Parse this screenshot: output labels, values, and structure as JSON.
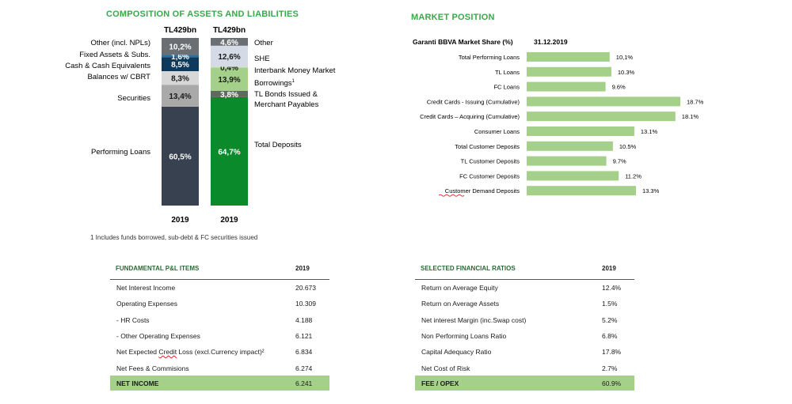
{
  "left_title": "COMPOSITION OF ASSETS AND LIABILITIES",
  "right_title": "MARKET POSITION",
  "footnote": "1 Includes funds borrowed, sub-debt & FC securities issued",
  "colors": {
    "title_green": "#3aa84a",
    "bar_green": "#a5d08a",
    "loan_dark": "#37414f",
    "deposit_green": "#0b8a2c"
  },
  "chart_data": [
    {
      "type": "bar",
      "stacked": true,
      "categories": [
        "2019",
        "2019"
      ],
      "totals": [
        "TL429bn",
        "TL429bn"
      ],
      "series": [
        {
          "stack": "assets",
          "name": "Performing Loans",
          "value": 60.5,
          "label": "60,5%",
          "color": "#37414f"
        },
        {
          "stack": "assets",
          "name": "Securities",
          "value": 13.4,
          "label": "13,4%",
          "color": "#a9a9a9"
        },
        {
          "stack": "assets",
          "name": "Balances w/ CBRT",
          "value": 8.3,
          "label": "8,3%",
          "color": "#d7d7d7"
        },
        {
          "stack": "assets",
          "name": "Cash & Cash Equivalents",
          "value": 8.5,
          "label": "8,5%",
          "color": "#0d3a5c"
        },
        {
          "stack": "assets",
          "name": "Fixed Assets & Subs.",
          "value": 1.6,
          "label": "1,6%",
          "color": "#2f6f9a"
        },
        {
          "stack": "assets",
          "name": "Other (incl. NPLs)",
          "value": 10.2,
          "label": "10,2%",
          "color": "#6b6f73"
        },
        {
          "stack": "liabilities",
          "name": "Total Deposits",
          "value": 64.7,
          "label": "64,7%",
          "color": "#0b8a2c"
        },
        {
          "stack": "liabilities",
          "name": "TL Bonds Issued & Merchant Payables",
          "value": 3.8,
          "label": "3,8%",
          "color": "#5d6a62"
        },
        {
          "stack": "liabilities",
          "name": "Borrowings",
          "value": 13.9,
          "label": "13,9%",
          "color": "#a5d08a"
        },
        {
          "stack": "liabilities",
          "name": "Interbank Money Market",
          "value": 0.4,
          "label": "0,4%",
          "color": "#cfe8bd"
        },
        {
          "stack": "liabilities",
          "name": "SHE",
          "value": 12.6,
          "label": "12,6%",
          "color": "#d4dbe6"
        },
        {
          "stack": "liabilities",
          "name": "Other",
          "value": 4.6,
          "label": "4,6%",
          "color": "#6b6f73"
        }
      ],
      "asset_labels": [
        "Other (incl. NPLs)",
        "Fixed Assets & Subs.",
        "Cash & Cash Equivalents",
        "Balances w/ CBRT",
        "Securities",
        "Performing Loans"
      ],
      "liability_labels": [
        "Other",
        "SHE",
        "Interbank Money Market",
        "Borrowings",
        "TL Bonds Issued &",
        "Merchant Payables",
        "Total Deposits"
      ],
      "superscript": "1"
    },
    {
      "type": "bar",
      "orientation": "horizontal",
      "header": "Garanti BBVA Market Share (%)",
      "date": "31.12.2019",
      "xlim": [
        0,
        20
      ],
      "categories": [
        "Total Performing Loans",
        "TL Loans",
        "FC Loans",
        "Credit Cards - Issuing (Cumulative)",
        "Credit Cards – Acquiring (Cumulative)",
        "Consumer Loans",
        "Total Customer Deposits",
        "TL Customer Deposits",
        "FC Customer Deposits",
        "Customer Demand Deposits"
      ],
      "values": [
        10.1,
        10.3,
        9.6,
        18.7,
        18.1,
        13.1,
        10.5,
        9.7,
        11.2,
        13.3
      ],
      "labels": [
        "10,1%",
        "10.3%",
        "9.6%",
        "18.7%",
        "18.1%",
        "13.1%",
        "10.5%",
        "9.7%",
        "11.2%",
        "13.3%"
      ]
    }
  ],
  "pl_table": {
    "header": "FUNDAMENTAL P&L ITEMS",
    "year": "2019",
    "rows": [
      {
        "label": "Net Interest Income",
        "value": "20.673"
      },
      {
        "label": "Operating Expenses",
        "value": "10.309"
      },
      {
        "label": "- HR Costs",
        "value": "4.188"
      },
      {
        "label": "- Other Operating Expenses",
        "value": "6.121"
      },
      {
        "label": "Net Expected Credit Loss (excl.Currency impact)²",
        "value": "6.834"
      },
      {
        "label": "Net Fees & Commisions",
        "value": "6.274"
      }
    ],
    "total": {
      "label": "NET INCOME",
      "value": "6.241"
    }
  },
  "ratio_table": {
    "header": "SELECTED FINANCIAL RATIOS",
    "year": "2019",
    "rows": [
      {
        "label": "Return on Average Equity",
        "value": "12.4%"
      },
      {
        "label": "Return on Average Assets",
        "value": "1.5%"
      },
      {
        "label": "Net interest Margin (inc.Swap cost)",
        "value": "5.2%"
      },
      {
        "label": "Non Performing Loans Ratio",
        "value": "6.8%"
      },
      {
        "label": "Capital Adequacy Ratio",
        "value": "17.8%"
      },
      {
        "label": "Net Cost of Risk",
        "value": "2.7%"
      }
    ],
    "total": {
      "label": "FEE / OPEX",
      "value": "60.9%"
    }
  }
}
